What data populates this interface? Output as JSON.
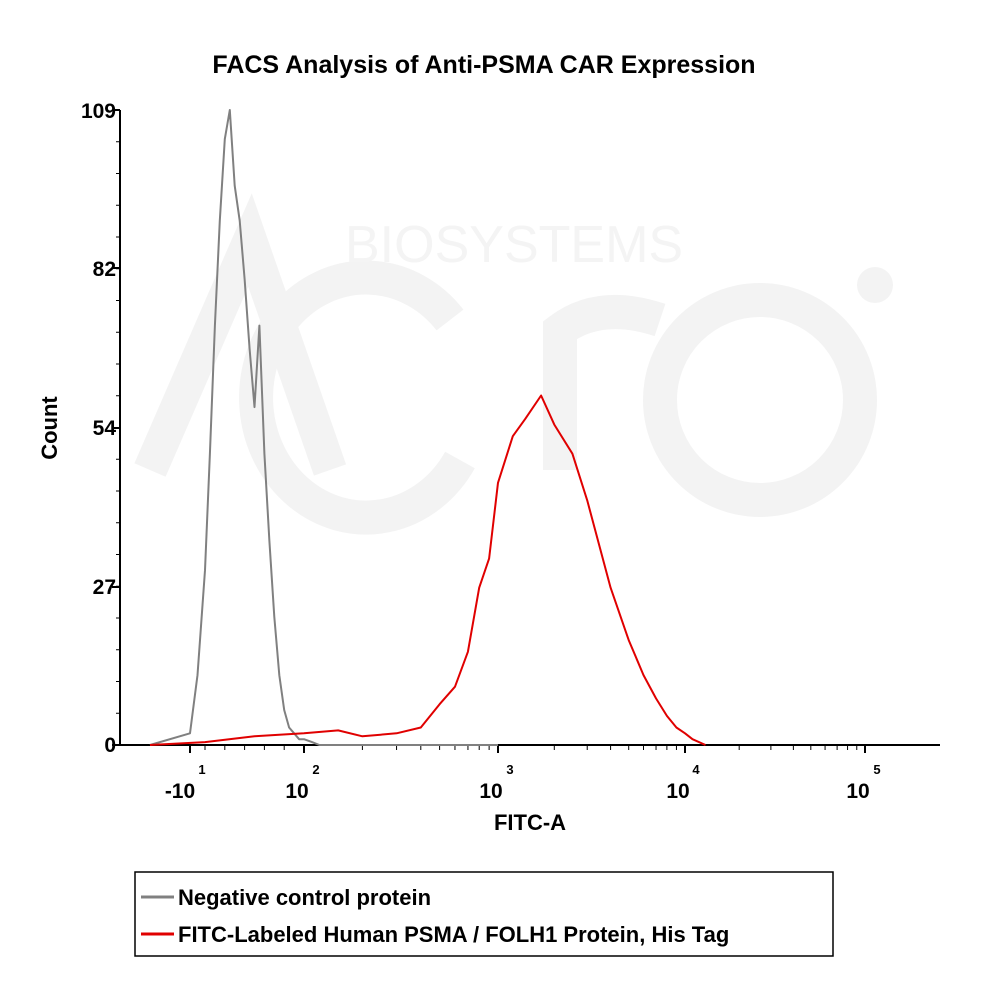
{
  "chart_data": {
    "type": "line",
    "title": "FACS Analysis of Anti-PSMA CAR Expression",
    "xlabel": "FITC-A",
    "ylabel": "Count",
    "x_scale": "biexponential (log display)",
    "x_ticks": [
      {
        "base": "-10",
        "exp": "1",
        "value": -10
      },
      {
        "base": "10",
        "exp": "2",
        "value": 100
      },
      {
        "base": "10",
        "exp": "3",
        "value": 1000
      },
      {
        "base": "10",
        "exp": "4",
        "value": 10000
      },
      {
        "base": "10",
        "exp": "5",
        "value": 100000
      }
    ],
    "y_ticks": [
      "0",
      "27",
      "54",
      "82",
      "109"
    ],
    "ylim": [
      0,
      109
    ],
    "grid": false,
    "legend_position": "bottom",
    "series": [
      {
        "name": "Negative control protein",
        "color": "#808080",
        "x": [
          -20,
          -10,
          -5,
          0,
          5,
          10,
          15,
          20,
          25,
          30,
          35,
          40,
          45,
          50,
          55,
          60,
          65,
          70,
          75,
          80,
          85,
          90,
          95,
          100,
          110,
          120,
          150,
          200,
          300,
          500,
          1000
        ],
        "y": [
          0,
          2,
          12,
          30,
          50,
          72,
          90,
          104,
          109,
          96,
          90,
          80,
          68,
          58,
          72,
          50,
          35,
          22,
          12,
          6,
          3,
          2,
          1,
          1,
          0.5,
          0,
          0,
          0,
          0,
          0,
          0
        ]
      },
      {
        "name": "FITC-Labeled Human PSMA / FOLH1 Protein, His Tag",
        "color": "#e00000",
        "x": [
          -20,
          0,
          50,
          100,
          150,
          200,
          300,
          400,
          500,
          600,
          700,
          800,
          900,
          1000,
          1200,
          1400,
          1700,
          2000,
          2500,
          3000,
          4000,
          5000,
          6000,
          7000,
          8000,
          9000,
          10000,
          11000,
          13000
        ],
        "y": [
          0,
          0.5,
          1.5,
          2,
          2.5,
          1.5,
          2,
          3,
          7,
          10,
          16,
          27,
          32,
          45,
          53,
          56,
          60,
          55,
          50,
          42,
          27,
          18,
          12,
          8,
          5,
          3,
          2,
          1,
          0
        ]
      }
    ]
  },
  "legend": {
    "items": [
      {
        "label": "Negative control protein",
        "color": "#808080"
      },
      {
        "label": "FITC-Labeled Human PSMA / FOLH1 Protein, His Tag",
        "color": "#e00000"
      }
    ]
  }
}
